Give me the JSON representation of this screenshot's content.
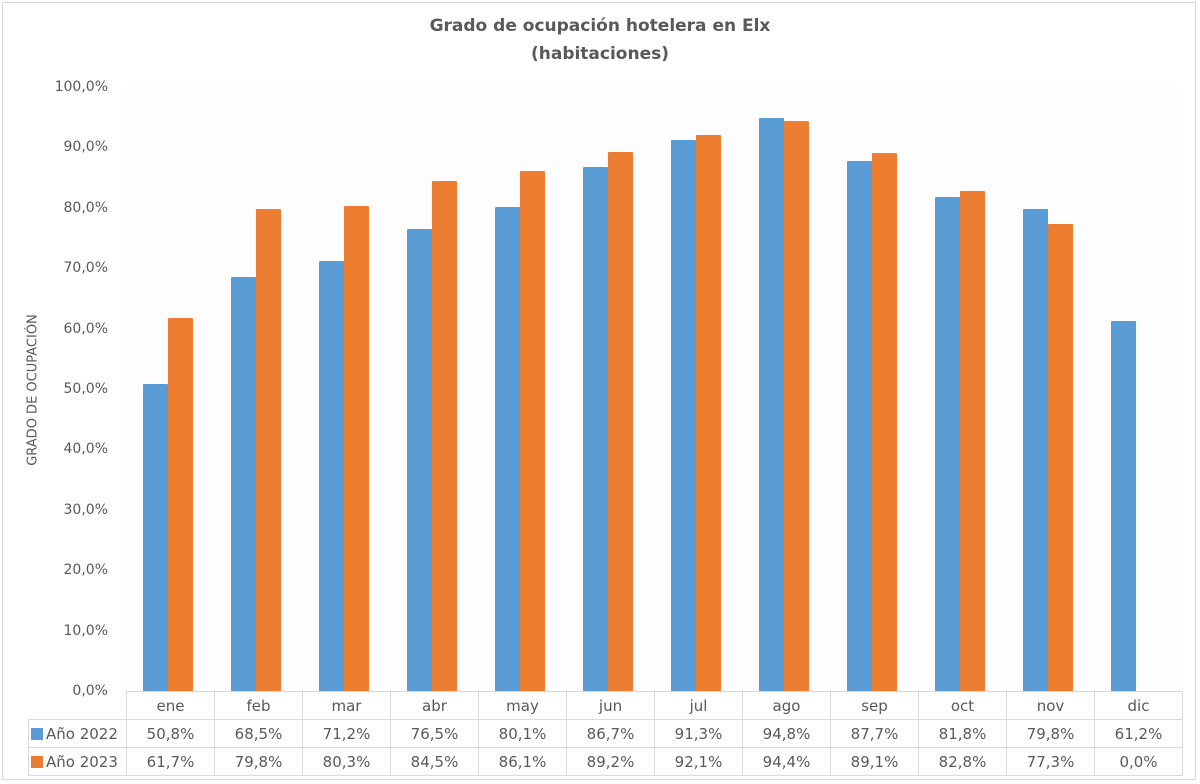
{
  "chart_data": {
    "type": "bar",
    "title": "Grado de ocupación hotelera en Elx",
    "subtitle": "(habitaciones)",
    "xlabel": "",
    "ylabel": "GRADO DE OCUPACIÓN",
    "ylim": [
      0,
      100
    ],
    "yticks": [
      "0,0%",
      "10,0%",
      "20,0%",
      "30,0%",
      "40,0%",
      "50,0%",
      "60,0%",
      "70,0%",
      "80,0%",
      "90,0%",
      "100,0%"
    ],
    "grid": false,
    "legend_position": "data-table",
    "categories": [
      "ene",
      "feb",
      "mar",
      "abr",
      "may",
      "jun",
      "jul",
      "ago",
      "sep",
      "oct",
      "nov",
      "dic"
    ],
    "series": [
      {
        "name": "Año 2022",
        "color": "#5b9bd5",
        "values": [
          50.8,
          68.5,
          71.2,
          76.5,
          80.1,
          86.7,
          91.3,
          94.8,
          87.7,
          81.8,
          79.8,
          61.2
        ],
        "labels": [
          "50,8%",
          "68,5%",
          "71,2%",
          "76,5%",
          "80,1%",
          "86,7%",
          "91,3%",
          "94,8%",
          "87,7%",
          "81,8%",
          "79,8%",
          "61,2%"
        ]
      },
      {
        "name": "Año 2023",
        "color": "#ed7d31",
        "values": [
          61.7,
          79.8,
          80.3,
          84.5,
          86.1,
          89.2,
          92.1,
          94.4,
          89.1,
          82.8,
          77.3,
          0.0
        ],
        "labels": [
          "61,7%",
          "79,8%",
          "80,3%",
          "84,5%",
          "86,1%",
          "89,2%",
          "92,1%",
          "94,4%",
          "89,1%",
          "82,8%",
          "77,3%",
          "0,0%"
        ]
      }
    ]
  }
}
